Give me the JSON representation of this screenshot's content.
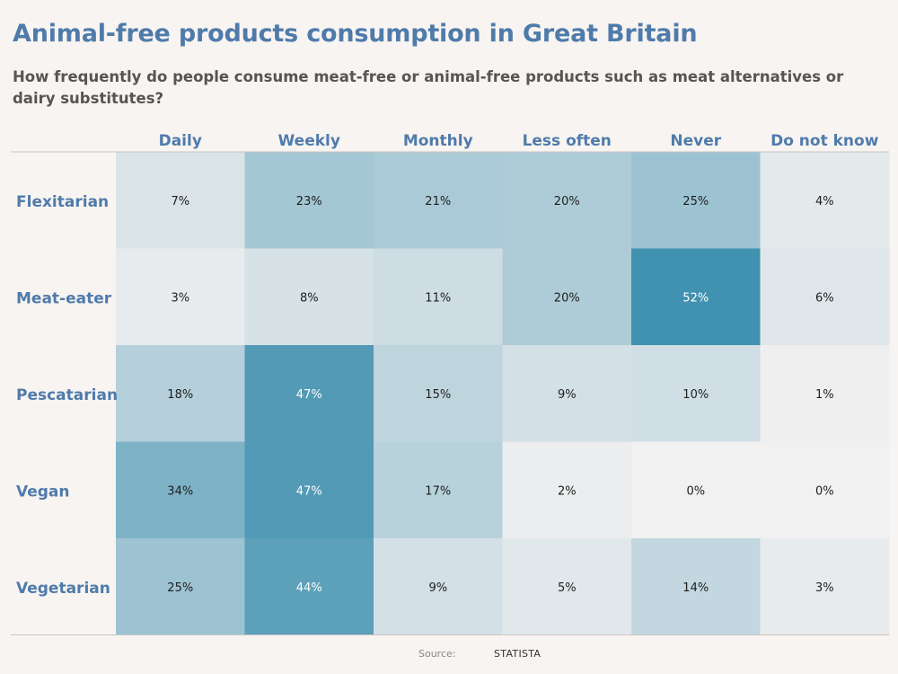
{
  "header": {
    "title": "Animal-free products consumption in Great Britain",
    "subtitle": "How frequently do people consume meat-free or animal-free products such as meat alternatives or dairy substitutes?"
  },
  "footer": {
    "source_label": "Source:",
    "source_value": "STATISTA"
  },
  "colors": {
    "background": "#f8f4f1",
    "accent": "#4f7bab",
    "heat_low": "#f2f1f1",
    "heat_high": "#4191b0"
  },
  "chart_data": {
    "type": "heatmap",
    "title": "Animal-free products consumption in Great Britain",
    "columns": [
      "Daily",
      "Weekly",
      "Monthly",
      "Less often",
      "Never",
      "Do not know"
    ],
    "rows": [
      "Flexitarian",
      "Meat-eater",
      "Pescatarian",
      "Vegan",
      "Vegetarian"
    ],
    "values": [
      [
        7,
        23,
        21,
        20,
        25,
        4
      ],
      [
        3,
        8,
        11,
        20,
        52,
        6
      ],
      [
        18,
        47,
        15,
        9,
        10,
        1
      ],
      [
        34,
        47,
        17,
        2,
        0,
        0
      ],
      [
        25,
        44,
        9,
        5,
        14,
        3
      ]
    ],
    "value_labels": [
      [
        "7%",
        "23%",
        "21%",
        "20%",
        "25%",
        "4%"
      ],
      [
        "3%",
        "8%",
        "11%",
        "20%",
        "52%",
        "6%"
      ],
      [
        "18%",
        "47%",
        "15%",
        "9%",
        "10%",
        "1%"
      ],
      [
        "34%",
        "47%",
        "17%",
        "2%",
        "0%",
        "0%"
      ],
      [
        "25%",
        "44%",
        "9%",
        "5%",
        "14%",
        "3%"
      ]
    ],
    "unit": "%",
    "color_range": [
      0,
      52
    ]
  }
}
